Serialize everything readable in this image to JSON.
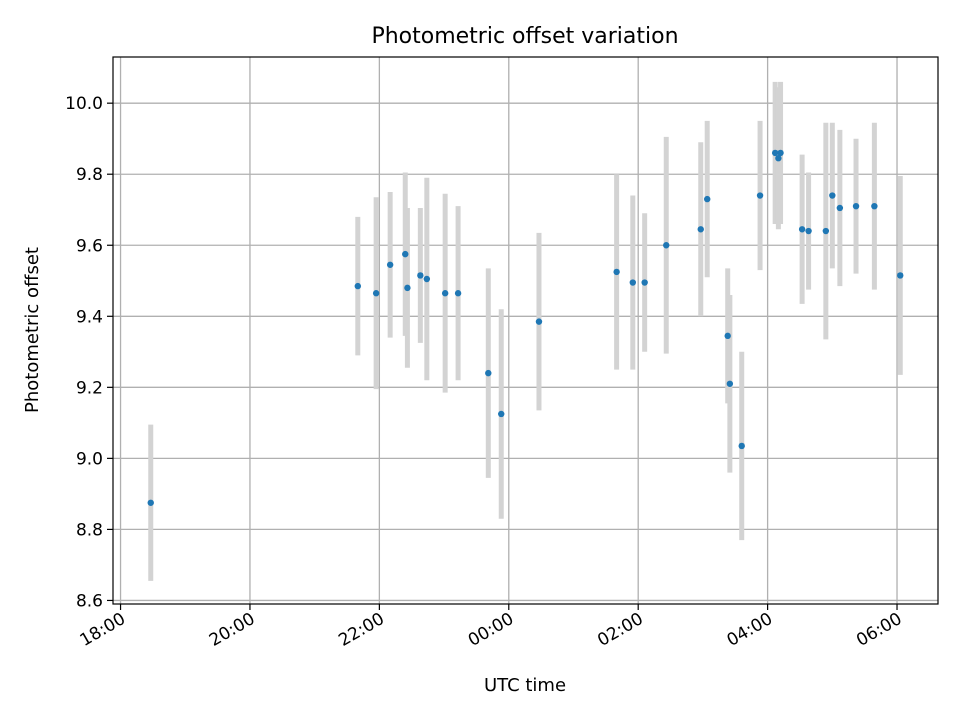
{
  "chart_data": {
    "type": "scatter",
    "title": "Photometric offset variation",
    "xlabel": "UTC time",
    "ylabel": "Photometric offset",
    "x_axis": {
      "kind": "time",
      "ticks": [
        "18:00",
        "20:00",
        "22:00",
        "00:00",
        "02:00",
        "04:00",
        "06:00"
      ],
      "range": [
        "17:53",
        "06:38"
      ]
    },
    "y_axis": {
      "ticks": [
        "8.6",
        "8.8",
        "9.0",
        "9.2",
        "9.4",
        "9.6",
        "9.8",
        "10.0"
      ],
      "ylim": [
        8.59,
        10.13
      ]
    },
    "grid": true,
    "series": [
      {
        "marker_color": "#1f77b4",
        "errorbar_color": "#d3d3d3",
        "points": [
          {
            "x": "18:28",
            "y": 8.875,
            "err": 0.22
          },
          {
            "x": "21:40",
            "y": 9.485,
            "err": 0.195
          },
          {
            "x": "21:57",
            "y": 9.465,
            "err": 0.27
          },
          {
            "x": "22:10",
            "y": 9.545,
            "err": 0.205
          },
          {
            "x": "22:24",
            "y": 9.575,
            "err": 0.23
          },
          {
            "x": "22:26",
            "y": 9.48,
            "err": 0.225
          },
          {
            "x": "22:38",
            "y": 9.515,
            "err": 0.19
          },
          {
            "x": "22:44",
            "y": 9.505,
            "err": 0.285
          },
          {
            "x": "23:01",
            "y": 9.465,
            "err": 0.28
          },
          {
            "x": "23:13",
            "y": 9.465,
            "err": 0.245
          },
          {
            "x": "23:41",
            "y": 9.24,
            "err": 0.295
          },
          {
            "x": "23:53",
            "y": 9.125,
            "err": 0.295
          },
          {
            "x": "00:28",
            "y": 9.385,
            "err": 0.25
          },
          {
            "x": "01:40",
            "y": 9.525,
            "err": 0.275
          },
          {
            "x": "01:55",
            "y": 9.495,
            "err": 0.245
          },
          {
            "x": "02:06",
            "y": 9.495,
            "err": 0.195
          },
          {
            "x": "02:26",
            "y": 9.6,
            "err": 0.305
          },
          {
            "x": "02:58",
            "y": 9.645,
            "err": 0.245
          },
          {
            "x": "03:04",
            "y": 9.73,
            "err": 0.22
          },
          {
            "x": "03:23",
            "y": 9.345,
            "err": 0.19
          },
          {
            "x": "03:25",
            "y": 9.21,
            "err": 0.25
          },
          {
            "x": "03:36",
            "y": 9.035,
            "err": 0.265
          },
          {
            "x": "03:53",
            "y": 9.74,
            "err": 0.21
          },
          {
            "x": "04:07",
            "y": 9.86,
            "err": 0.2
          },
          {
            "x": "04:10",
            "y": 9.845,
            "err": 0.2
          },
          {
            "x": "04:12",
            "y": 9.86,
            "err": 0.2
          },
          {
            "x": "04:32",
            "y": 9.645,
            "err": 0.21
          },
          {
            "x": "04:38",
            "y": 9.64,
            "err": 0.165
          },
          {
            "x": "04:54",
            "y": 9.64,
            "err": 0.305
          },
          {
            "x": "05:00",
            "y": 9.74,
            "err": 0.205
          },
          {
            "x": "05:07",
            "y": 9.705,
            "err": 0.22
          },
          {
            "x": "05:22",
            "y": 9.71,
            "err": 0.19
          },
          {
            "x": "05:39",
            "y": 9.71,
            "err": 0.235
          },
          {
            "x": "06:03",
            "y": 9.515,
            "err": 0.28
          }
        ]
      }
    ]
  }
}
